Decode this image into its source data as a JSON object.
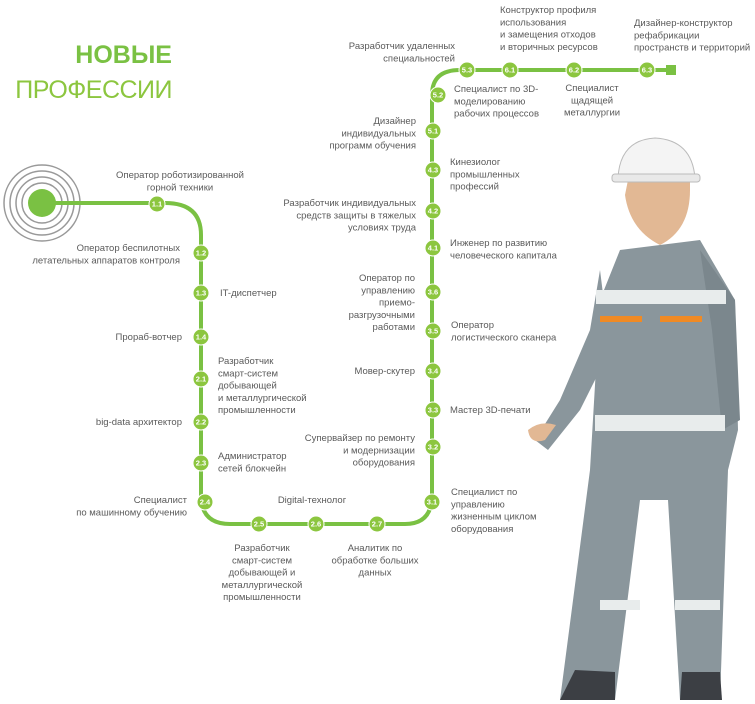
{
  "title": {
    "line1": "НОВЫЕ",
    "line2": "ПРОФЕССИИ"
  },
  "nodes": [
    {
      "id": "1.1",
      "lines": [
        "Оператор роботизированной",
        "горной техники"
      ]
    },
    {
      "id": "1.2",
      "lines": [
        "Оператор беспилотных",
        "летательных аппаратов контроля"
      ]
    },
    {
      "id": "1.3",
      "lines": [
        "IT-диспетчер"
      ]
    },
    {
      "id": "1.4",
      "lines": [
        "Прораб-вотчер"
      ]
    },
    {
      "id": "2.1",
      "lines": [
        "Разработчик",
        "смарт-систем",
        "добывающей",
        "и металлургической",
        "промышленности"
      ]
    },
    {
      "id": "2.2",
      "lines": [
        "big-data архитектор"
      ]
    },
    {
      "id": "2.3",
      "lines": [
        "Администратор",
        "сетей блокчейн"
      ]
    },
    {
      "id": "2.4",
      "lines": [
        "Специалист",
        "по машинному обучению"
      ]
    },
    {
      "id": "2.5",
      "lines": [
        "Разработчик",
        "смарт-систем",
        "добывающей и",
        "металлургической",
        "промышленности"
      ]
    },
    {
      "id": "2.6",
      "lines": [
        "Digital-технолог"
      ]
    },
    {
      "id": "2.7",
      "lines": [
        "Аналитик по",
        "обработке больших",
        "данных"
      ]
    },
    {
      "id": "3.1",
      "lines": [
        "Специалист по",
        "управлению",
        "жизненным циклом",
        "оборудования"
      ]
    },
    {
      "id": "3.2",
      "lines": [
        "Супервайзер по ремонту",
        "и модернизации",
        "оборудования"
      ]
    },
    {
      "id": "3.3",
      "lines": [
        "Мастер 3D-печати"
      ]
    },
    {
      "id": "3.4",
      "lines": [
        "Мовер-скутер"
      ]
    },
    {
      "id": "3.5",
      "lines": [
        "Оператор",
        "логистического сканера"
      ]
    },
    {
      "id": "3.6",
      "lines": [
        "Оператор по",
        "управлению",
        "приемо-",
        "разгрузочными",
        "работами"
      ]
    },
    {
      "id": "4.1",
      "lines": [
        "Инженер по развитию",
        "человеческого капитала"
      ]
    },
    {
      "id": "4.2",
      "lines": [
        "Разработчик индивидуальных",
        "средств защиты в тяжелых",
        "условиях труда"
      ]
    },
    {
      "id": "4.3",
      "lines": [
        "Кинезиолог",
        "промышленных",
        "профессий"
      ]
    },
    {
      "id": "5.1",
      "lines": [
        "Дизайнер",
        "индивидуальных",
        "программ обучения"
      ]
    },
    {
      "id": "5.2",
      "lines": [
        "Специалист по 3D-",
        "моделированию",
        "рабочих процессов"
      ]
    },
    {
      "id": "5.3",
      "lines": [
        "Разработчик удаленных",
        "специальностей"
      ]
    },
    {
      "id": "6.1",
      "lines": [
        "Конструктор профиля",
        "использования",
        "и замещения отходов",
        "и вторичных ресурсов"
      ]
    },
    {
      "id": "6.2",
      "lines": [
        "Специалист",
        "щадящей",
        "металлургии"
      ]
    },
    {
      "id": "6.3",
      "lines": [
        "Дизайнер-конструктор",
        "рефабрикации",
        "пространств и территорий"
      ]
    }
  ]
}
